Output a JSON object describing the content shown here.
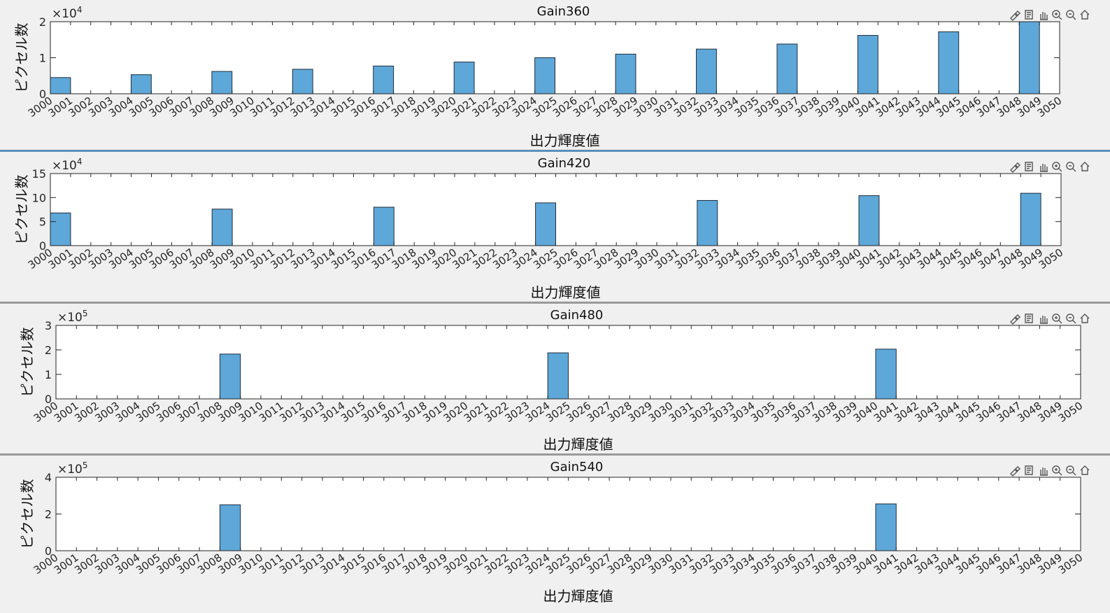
{
  "colors": {
    "bar": "#5ea7d9",
    "bar_edge": "#1f2d3a",
    "axis": "#262626",
    "background": "#f0f0f0",
    "plot_bg": "#ffffff",
    "separator": "#5b8fb8"
  },
  "toolbar_icons": [
    "brush-icon",
    "datatip-icon",
    "pan-icon",
    "zoom-in-icon",
    "zoom-out-icon",
    "home-icon"
  ],
  "chart_data": [
    {
      "type": "bar",
      "title": "Gain360",
      "xlabel": "出力輝度値",
      "ylabel": "ピクセル数",
      "exponent": "4",
      "yticks": [
        "0",
        "1",
        "2"
      ],
      "ylim": [
        0,
        2
      ],
      "xlim": [
        3000,
        3050
      ],
      "x": [
        3000,
        3004,
        3008,
        3012,
        3016,
        3020,
        3024,
        3028,
        3032,
        3036,
        3040,
        3044,
        3048
      ],
      "values": [
        0.45,
        0.53,
        0.62,
        0.68,
        0.77,
        0.88,
        1.0,
        1.1,
        1.24,
        1.38,
        1.62,
        1.72,
        2.0
      ]
    },
    {
      "type": "bar",
      "title": "Gain420",
      "xlabel": "出力輝度値",
      "ylabel": "ピクセル数",
      "exponent": "4",
      "yticks": [
        "0",
        "5",
        "10",
        "15"
      ],
      "ylim": [
        0,
        15
      ],
      "xlim": [
        3000,
        3050
      ],
      "x": [
        3000,
        3008,
        3016,
        3024,
        3032,
        3040,
        3048
      ],
      "values": [
        6.8,
        7.6,
        8.0,
        8.9,
        9.4,
        10.4,
        10.9
      ]
    },
    {
      "type": "bar",
      "title": "Gain480",
      "xlabel": "出力輝度値",
      "ylabel": "ピクセル数",
      "exponent": "5",
      "yticks": [
        "0",
        "1",
        "2",
        "3"
      ],
      "ylim": [
        0,
        3
      ],
      "xlim": [
        3000,
        3050
      ],
      "x": [
        3008,
        3024,
        3040
      ],
      "values": [
        1.83,
        1.88,
        2.03
      ]
    },
    {
      "type": "bar",
      "title": "Gain540",
      "xlabel": "出力輝度値",
      "ylabel": "ピクセル数",
      "exponent": "5",
      "yticks": [
        "0",
        "2",
        "4"
      ],
      "ylim": [
        0,
        4
      ],
      "xlim": [
        3000,
        3050
      ],
      "x": [
        3008,
        3040
      ],
      "values": [
        2.5,
        2.55
      ]
    }
  ]
}
